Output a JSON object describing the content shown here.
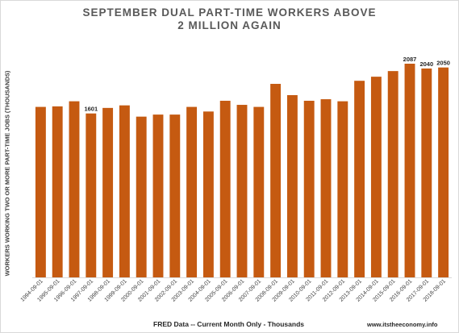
{
  "chart_data": {
    "type": "bar",
    "title_lines": [
      "SEPTEMBER DUAL PART-TIME WORKERS ABOVE",
      "2 MILLION AGAIN"
    ],
    "ylabel": "WORKERS WORKING TWO OR MORE PART-TIME JOBS (THOUSANDS)",
    "xlabel": "FRED Data -- Current Month Only - Thousands",
    "source": "www.itstheeconomy.info",
    "categories": [
      "1994-09-01",
      "1995-09-01",
      "1996-09-01",
      "1997-09-01",
      "1998-09-01",
      "1999-09-01",
      "2000-09-01",
      "2001-09-01",
      "2002-09-01",
      "2003-09-01",
      "2004-09-01",
      "2005-09-01",
      "2006-09-01",
      "2007-09-01",
      "2008-09-01",
      "2009-09-01",
      "2010-09-01",
      "2011-09-01",
      "2012-09-01",
      "2013-09-01",
      "2014-09-01",
      "2015-09-01",
      "2016-09-01",
      "2017-09-01",
      "2018-09-01"
    ],
    "values": [
      1665,
      1670,
      1720,
      1601,
      1655,
      1680,
      1570,
      1590,
      1590,
      1665,
      1620,
      1725,
      1685,
      1665,
      1890,
      1780,
      1725,
      1740,
      1720,
      1920,
      1960,
      2015,
      2087,
      2040,
      2050
    ],
    "data_labels": [
      {
        "index": 3,
        "text": "1601"
      },
      {
        "index": 22,
        "text": "2087"
      },
      {
        "index": 23,
        "text": "2040"
      },
      {
        "index": 24,
        "text": "2050"
      }
    ],
    "ylim": [
      0,
      2150
    ],
    "grid": false,
    "bar_color": "#c55a11"
  }
}
